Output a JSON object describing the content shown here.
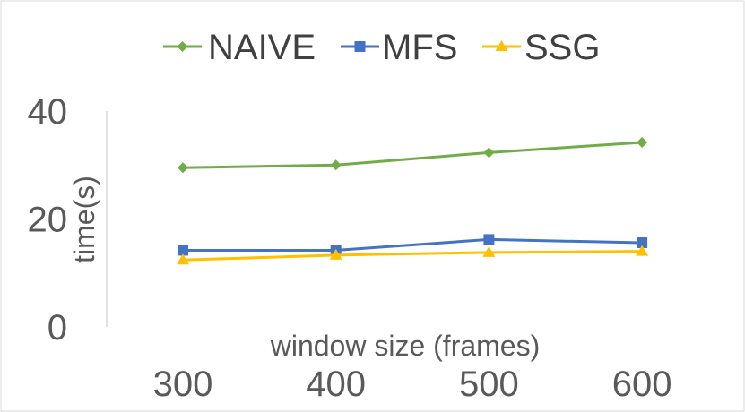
{
  "chart_data": {
    "type": "line",
    "title": "",
    "xlabel": "window size (frames)",
    "ylabel": "time(s)",
    "categories": [
      "300",
      "400",
      "500",
      "600"
    ],
    "ylim": [
      0,
      40
    ],
    "yticks": [
      "0",
      "20",
      "40"
    ],
    "grid": false,
    "legend": "top",
    "series": [
      {
        "name": "NAIVE",
        "values": [
          29.5,
          30.0,
          32.3,
          34.2
        ],
        "color": "#70AD47",
        "marker": "diamond"
      },
      {
        "name": "MFS",
        "values": [
          14.2,
          14.2,
          16.2,
          15.6
        ],
        "color": "#4472C4",
        "marker": "square"
      },
      {
        "name": "SSG",
        "values": [
          12.4,
          13.3,
          13.8,
          14.0
        ],
        "color": "#FFC000",
        "marker": "triangle"
      }
    ]
  }
}
